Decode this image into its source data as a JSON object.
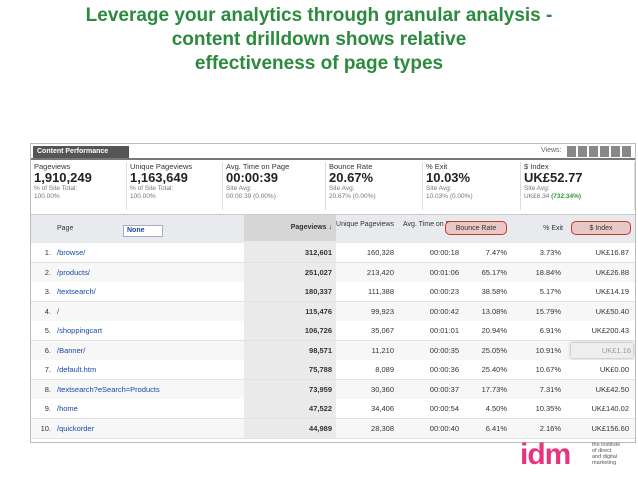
{
  "header": {
    "title_lines": [
      "Leverage your analytics through granular analysis -",
      "content drilldown shows relative",
      "effectiveness of page types"
    ]
  },
  "panel": {
    "title": "Content Performance",
    "views_label": "Views:"
  },
  "summary": [
    {
      "label": "Pageviews",
      "value": "1,910,249",
      "sub1": "% of Site Total:",
      "sub2": "100.00%"
    },
    {
      "label": "Unique Pageviews",
      "value": "1,163,649",
      "sub1": "% of Site Total:",
      "sub2": "100.00%"
    },
    {
      "label": "Avg. Time on Page",
      "value": "00:00:39",
      "sub1": "Site Avg:",
      "sub2": "00:00:39 (0.00%)"
    },
    {
      "label": "Bounce Rate",
      "value": "20.67%",
      "sub1": "Site Avg:",
      "sub2": "20.67% (0.00%)"
    },
    {
      "label": "% Exit",
      "value": "10.03%",
      "sub1": "Site Avg:",
      "sub2": "10.03% (0.00%)"
    },
    {
      "label": "$ Index",
      "value": "UK£52.77",
      "sub1": "Site Avg:",
      "sub2": "UK£6.34",
      "sub3": "(732.34%)"
    }
  ],
  "table": {
    "columns": [
      "Page",
      "None",
      "Pageviews ↓",
      "Unique Pageviews",
      "Avg. Time on Page",
      "Bounce Rate",
      "% Exit",
      "$ Index"
    ],
    "rows": [
      [
        "1.",
        "/browse/",
        "312,601",
        "160,328",
        "00:00:18",
        "7.47%",
        "3.73%",
        "UK£16.87"
      ],
      [
        "2.",
        "/products/",
        "251,027",
        "213,420",
        "00:01:06",
        "65.17%",
        "18.84%",
        "UK£26.88"
      ],
      [
        "3.",
        "/textsearch/",
        "180,337",
        "111,388",
        "00:00:23",
        "38.58%",
        "5.17%",
        "UK£14.19"
      ],
      [
        "4.",
        "/",
        "115,476",
        "99,923",
        "00:00:42",
        "13.08%",
        "15.79%",
        "UK£50.40"
      ],
      [
        "5.",
        "/shoppingcart",
        "106,726",
        "35,067",
        "00:01:01",
        "20.94%",
        "6.91%",
        "UK£200.43"
      ],
      [
        "6.",
        "/Banner/",
        "98,571",
        "11,210",
        "00:00:35",
        "25.05%",
        "10.91%",
        "UK£1.16"
      ],
      [
        "7.",
        "/default.htm",
        "75,788",
        "8,089",
        "00:00:36",
        "25.40%",
        "10.67%",
        "UK£0.00"
      ],
      [
        "8.",
        "/textsearch?eSearch=Products",
        "73,959",
        "30,360",
        "00:00:37",
        "17.73%",
        "7.31%",
        "UK£42.50"
      ],
      [
        "9.",
        "/home",
        "47,522",
        "34,406",
        "00:00:54",
        "4.50%",
        "10.35%",
        "UK£140.02"
      ],
      [
        "10.",
        "/quickorder",
        "44,989",
        "28,308",
        "00:00:40",
        "6.41%",
        "2.16%",
        "UK£156.60"
      ]
    ]
  },
  "logo": {
    "mark": "idm",
    "text_lines": [
      "the institute",
      "of direct",
      "and digital",
      "marketing"
    ]
  }
}
